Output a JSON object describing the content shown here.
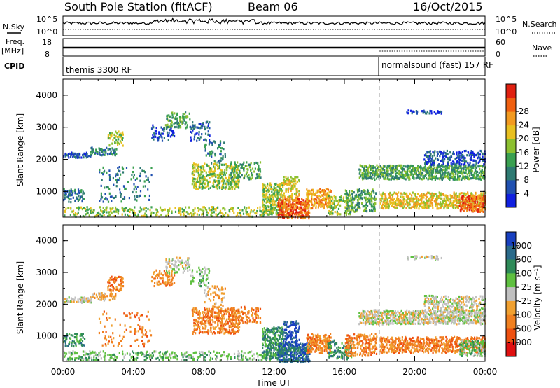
{
  "header": {
    "title": "South Pole Station (fitACF)",
    "beam": "Beam 06",
    "date": "16/Oct/2015"
  },
  "status": {
    "nsky_label": "N.Sky",
    "nsky_ticks": [
      "10^5",
      "10^0"
    ],
    "nsearch_label": "N.Search",
    "nsearch_ticks": [
      "10^5",
      "10^0"
    ],
    "freq_label": "Freq.",
    "freq_unit": "[MHz]",
    "freq_ticks": [
      "18",
      "8"
    ],
    "nave_label": "Nave",
    "nave_ticks": [
      "60",
      "0"
    ],
    "cpid_label": "CPID",
    "cpid_segments": [
      {
        "label": "themis 3300 RF",
        "start_hour": 0,
        "end_hour": 18
      },
      {
        "label": "normalsound (fast) 157 RF",
        "start_hour": 18,
        "end_hour": 24
      }
    ]
  },
  "chart_data": [
    {
      "type": "heatmap",
      "name": "power",
      "ylabel": "Slant Range [km]",
      "xlabel": "",
      "ylim": [
        200,
        4500
      ],
      "yticks": [
        "1000",
        "2000",
        "3000",
        "4000"
      ],
      "colorbar": {
        "label": "Power [dB]",
        "ticks": [
          "4",
          "8",
          "12",
          "16",
          "20",
          "24",
          "28"
        ],
        "colors": [
          "#1020e0",
          "#2050b0",
          "#2e7a72",
          "#3aa050",
          "#8cc030",
          "#e8c020",
          "#f29a20",
          "#f06010",
          "#e02010"
        ]
      }
    },
    {
      "type": "heatmap",
      "name": "velocity",
      "ylabel": "Slant Range [km]",
      "xlabel": "Time UT",
      "ylim": [
        200,
        4500
      ],
      "yticks": [
        "1000",
        "2000",
        "3000",
        "4000"
      ],
      "xticks": [
        "00:00",
        "04:00",
        "08:00",
        "12:00",
        "16:00",
        "20:00",
        "00:00"
      ],
      "colorbar": {
        "label": "Velocity [m s⁻¹]",
        "ticks": [
          "1000",
          "500",
          "100",
          "25",
          "-25",
          "-100",
          "-500",
          "-1000"
        ],
        "colors": [
          "#1840c0",
          "#2a6a8a",
          "#2e8a58",
          "#5fc040",
          "#c0c0c0",
          "#f0a030",
          "#f08020",
          "#ee5010",
          "#e01010"
        ]
      }
    }
  ],
  "regions": [
    {
      "t0": 0.0,
      "t1": 1.6,
      "r0": 2080,
      "r1": 2250,
      "p": 0.55,
      "pw": 1,
      "vel": 4
    },
    {
      "t0": 1.5,
      "t1": 3.0,
      "r0": 2150,
      "r1": 2400,
      "p": 0.4,
      "pw": 2,
      "vel": 5
    },
    {
      "t0": 2.5,
      "t1": 3.4,
      "r0": 2450,
      "r1": 2900,
      "p": 0.35,
      "pw": 4,
      "vel": 6
    },
    {
      "t0": 5.0,
      "t1": 6.3,
      "r0": 2600,
      "r1": 3100,
      "p": 0.3,
      "pw": 1,
      "vel": 6
    },
    {
      "t0": 5.8,
      "t1": 7.2,
      "r0": 3000,
      "r1": 3500,
      "p": 0.35,
      "pw": 3,
      "vel": 4
    },
    {
      "t0": 7.2,
      "t1": 8.3,
      "r0": 2600,
      "r1": 3200,
      "p": 0.25,
      "pw": 1,
      "vel": 3
    },
    {
      "t0": 8.0,
      "t1": 9.2,
      "r0": 1900,
      "r1": 2600,
      "p": 0.2,
      "pw": 2,
      "vel": 5
    },
    {
      "t0": 7.3,
      "t1": 10.0,
      "r0": 1100,
      "r1": 1900,
      "p": 0.45,
      "pw": 4,
      "vel": 6
    },
    {
      "t0": 9.5,
      "t1": 11.2,
      "r0": 1400,
      "r1": 1950,
      "p": 0.3,
      "pw": 3,
      "vel": 6
    },
    {
      "t0": 2.0,
      "t1": 5.0,
      "r0": 700,
      "r1": 1800,
      "p": 0.1,
      "pw": 2,
      "vel": 6
    },
    {
      "t0": 0.0,
      "t1": 11.8,
      "r0": 250,
      "r1": 550,
      "p": 0.25,
      "pw": 4,
      "vel": 3
    },
    {
      "t0": 0.0,
      "t1": 1.2,
      "r0": 700,
      "r1": 1100,
      "p": 0.35,
      "pw": 2,
      "vel": 2
    },
    {
      "t0": 11.3,
      "t1": 12.5,
      "r0": 300,
      "r1": 1300,
      "p": 0.55,
      "pw": 4,
      "vel": 2
    },
    {
      "t0": 12.2,
      "t1": 14.0,
      "r0": 200,
      "r1": 800,
      "p": 0.7,
      "pw": 7,
      "vel": 1
    },
    {
      "t0": 12.5,
      "t1": 13.4,
      "r0": 700,
      "r1": 1500,
      "p": 0.4,
      "pw": 5,
      "vel": 0
    },
    {
      "t0": 13.8,
      "t1": 15.2,
      "r0": 500,
      "r1": 1100,
      "p": 0.55,
      "pw": 6,
      "vel": 6
    },
    {
      "t0": 15.0,
      "t1": 16.4,
      "r0": 300,
      "r1": 900,
      "p": 0.35,
      "pw": 4,
      "vel": 2
    },
    {
      "t0": 16.0,
      "t1": 17.8,
      "r0": 400,
      "r1": 1100,
      "p": 0.45,
      "pw": 3,
      "vel": 6
    },
    {
      "t0": 16.8,
      "t1": 24.0,
      "r0": 1400,
      "r1": 1850,
      "p": 0.6,
      "pw": 3,
      "vel": 4
    },
    {
      "t0": 20.5,
      "t1": 24.0,
      "r0": 1850,
      "r1": 2300,
      "p": 0.35,
      "pw": 1,
      "vel": 4
    },
    {
      "t0": 18.0,
      "t1": 24.0,
      "r0": 500,
      "r1": 1000,
      "p": 0.55,
      "pw": 5,
      "vel": 6
    },
    {
      "t0": 19.5,
      "t1": 21.5,
      "r0": 3450,
      "r1": 3560,
      "p": 0.5,
      "pw": 1,
      "vel": 4
    },
    {
      "t0": 22.5,
      "t1": 24.0,
      "r0": 400,
      "r1": 900,
      "p": 0.55,
      "pw": 7,
      "vel": 3
    }
  ]
}
